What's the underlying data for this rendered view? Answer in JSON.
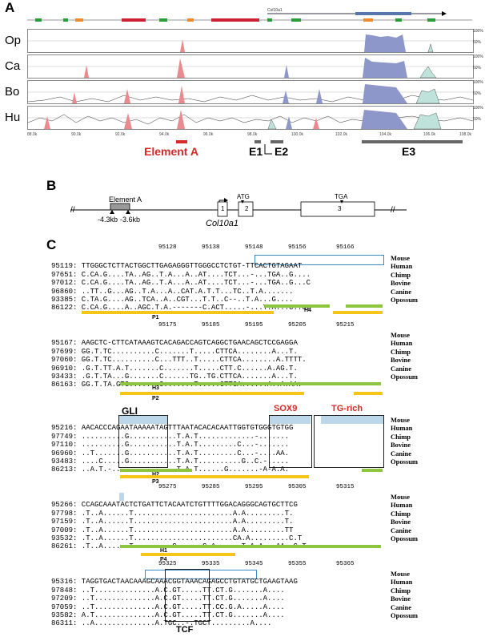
{
  "panels": {
    "a": "A",
    "b": "B",
    "c": "C"
  },
  "panel_a": {
    "gene_label": "Col10a1",
    "species": [
      "Op",
      "Ca",
      "Bo",
      "Hu"
    ],
    "pct_top": "100%",
    "pct_mid": "50%",
    "axis_ticks": [
      "88.0k",
      "90.0k",
      "92.0k",
      "94.0k",
      "96.0k",
      "98.0k",
      "100.0k",
      "102.0k",
      "104.0k",
      "106.0k",
      "108.0k"
    ],
    "element_a": "Element A",
    "e1": "E1",
    "e2": "E2",
    "e3": "E3",
    "colors": {
      "exon": "#8d97c9",
      "cns": "#e88a8f",
      "utr": "#bfe3da",
      "element_a": "#d42a2a"
    }
  },
  "panel_b": {
    "element_label": "Element A",
    "pos1": "-4.3kb",
    "pos2": "-3.6kb",
    "atg": "ATG",
    "tga": "TGA",
    "exon1": "1",
    "exon2": "2",
    "exon3": "3",
    "gene": "Col10a1"
  },
  "panel_c": {
    "blocks": [
      {
        "positions": [
          "95128",
          "95138",
          "95148",
          "95156",
          "95166"
        ],
        "rows": [
          {
            "seq": "95119: TTGGGCTCTTACTGGCTTGAGAGGGTTGGGCCTCTGT-TTCACTGTAGAAT",
            "sp": "Mouse"
          },
          {
            "seq": "97651: C.CA.G....TA..AG..T.A...A..AT....TCT...-...TGA..G....",
            "sp": "Human"
          },
          {
            "seq": "97012: C.CA.G....TA..AG..T.A...A..AT....TCT...-...TGA..G...C",
            "sp": "Chimp"
          },
          {
            "seq": "96860: ..TT..G...AG..T.A...A..CAT.A.T.T...TC..T.A.......",
            "sp": "Bovine"
          },
          {
            "seq": "93385: C.TA.G....AG..TCA..A..CGT...T.T..C--..T.A...G....",
            "sp": "Canine"
          },
          {
            "seq": "86122: C.CA.G....A..AGC.T.A.-------C.ACT.....-...T.A...C..G.",
            "sp": "Opossum"
          }
        ],
        "bars": [
          {
            "label": "P1"
          },
          {
            "label": "H4"
          }
        ]
      },
      {
        "positions": [
          "95175",
          "95185",
          "95195",
          "95205",
          "95215"
        ],
        "rows": [
          {
            "seq": "95167: AAGCTC-CTTCATAAAGTCACAGACCAGTCAGGCTGAACAGCTCCGAGGA",
            "sp": "Mouse"
          },
          {
            "seq": "97699: GG.T.TC..........C.......T.....CTTCA........A...T.",
            "sp": "Human"
          },
          {
            "seq": "97060: GG.T.TC..........C...TTT..T.....CTTCA........A.TTTT.",
            "sp": "Chimp"
          },
          {
            "seq": "96910: .G.T.TT.A.T.......C.......T.....CTT.C......A.AG.T.",
            "sp": "Bovine"
          },
          {
            "seq": "93433: .G.T.TA...G.......C......TG..TG.CTTCA.......A...T.",
            "sp": "Canine"
          },
          {
            "seq": "86163: GG.T.TA.GTG.......C.......T.....CTTCA......A..A.AA.",
            "sp": "Opossum"
          }
        ],
        "bars": [
          {
            "label": "H3"
          },
          {
            "label": "P2"
          }
        ]
      },
      {
        "labels": {
          "gli": "GLI",
          "sox9": "SOX9",
          "tg": "TG-rich"
        },
        "rows": [
          {
            "seq": "95216: AACACCCAGAATAAAAATAGTTTAATACACACAATTGGTGTGGGTGTGG",
            "sp": "Mouse"
          },
          {
            "seq": "97749: ..........G...........T.A.T.............-.......",
            "sp": "Human"
          },
          {
            "seq": "97110: ..........G...........T.A.T.........C...-.......",
            "sp": "Chimp"
          },
          {
            "seq": "96960: ..T.......G...........T.A.T.........C...-....AA.",
            "sp": "Bovine"
          },
          {
            "seq": "93483: ....C.....G...........T.A.T..........G..C.-.....",
            "sp": "Canine"
          },
          {
            "seq": "86213: ..A.T.-...............T.A.T......G.......-A-A.A.",
            "sp": "Opossum"
          }
        ],
        "bars": [
          {
            "label": "H2"
          },
          {
            "label": "P3"
          }
        ]
      },
      {
        "positions": [
          "95275",
          "95285",
          "95295",
          "95305",
          "95315"
        ],
        "rows": [
          {
            "seq": "95266: CCAGCAAATACTCTGATTCTACAATCTGTTTTGGACAGGGCAGTGCTTCG",
            "sp": "Mouse"
          },
          {
            "seq": "97798: .T..A......T.......................A.A.........T.",
            "sp": "Human"
          },
          {
            "seq": "97159: .T..A......T.......................A.A.........T.",
            "sp": "Chimp"
          },
          {
            "seq": "97009: .T..A......T.......................A.A.........TT",
            "sp": "Bovine"
          },
          {
            "seq": "93532: .T..A......T.......................CA.A.........C.T",
            "sp": "Canine"
          },
          {
            "seq": "86261: .T..A......T.........G......G.A......T.A.A...AA..C.T",
            "sp": "Opossum"
          }
        ],
        "bars": [
          {
            "label": "H1"
          },
          {
            "label": "P4"
          }
        ]
      },
      {
        "positions": [
          "95325",
          "95335",
          "95345",
          "95355",
          "95365"
        ],
        "tcf": "TCF",
        "rows": [
          {
            "seq": "95316: TAGGTGACTAACAAAGCAAACGGTAAACAGAGCCTGTATGCTGAAGTAAG",
            "sp": "Mouse"
          },
          {
            "seq": "97848: ..T..............A.C.GT.....TT.CT.G.......A....",
            "sp": "Human"
          },
          {
            "seq": "97209: ..T..............A.C.GT.....TT.CT.G.......A....",
            "sp": "Chimp"
          },
          {
            "seq": "97059: ..T..............A.C.GT.....TT.CC.G.A.....A....",
            "sp": "Bovine"
          },
          {
            "seq": "93582: A.T..............A.C.GT.....TT.CT.G.......A....",
            "sp": "Canine"
          },
          {
            "seq": "86311: ..A..............A.TGC..-.TGCT.........A....",
            "sp": "Opossum"
          }
        ]
      }
    ]
  }
}
